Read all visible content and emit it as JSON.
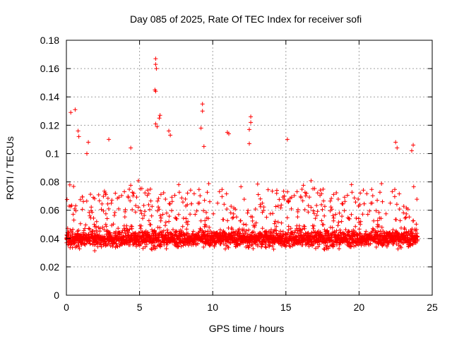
{
  "chart_data": {
    "type": "scatter",
    "title": "Day 085 of 2025, Rate Of TEC Index for receiver sofi",
    "xlabel": "GPS time / hours",
    "ylabel": "ROTI / TECUs",
    "xlim": [
      0,
      25
    ],
    "ylim": [
      0,
      0.18
    ],
    "grid": true,
    "marker": "+",
    "color": "#ff0000",
    "x_ticks": [
      0,
      5,
      10,
      15,
      20,
      25
    ],
    "x_tick_labels": [
      "0",
      "5",
      "10",
      "15",
      "20",
      "25"
    ],
    "y_ticks": [
      0,
      0.02,
      0.04,
      0.06,
      0.08,
      0.1,
      0.12,
      0.14,
      0.16,
      0.18
    ],
    "y_tick_labels": [
      "0",
      "0.02",
      "0.04",
      "0.06",
      "0.08",
      "0.1",
      "0.12",
      "0.14",
      "0.16",
      "0.18"
    ],
    "series": [
      {
        "name": "ROTI",
        "data_range_hours": [
          0,
          24
        ],
        "typical_range": [
          0.02,
          0.08
        ],
        "dense_band_center": 0.04,
        "outliers": [
          {
            "x": 0.3,
            "y": 0.129
          },
          {
            "x": 0.6,
            "y": 0.131
          },
          {
            "x": 0.8,
            "y": 0.116
          },
          {
            "x": 0.85,
            "y": 0.112
          },
          {
            "x": 1.4,
            "y": 0.1
          },
          {
            "x": 1.5,
            "y": 0.108
          },
          {
            "x": 2.9,
            "y": 0.11
          },
          {
            "x": 4.4,
            "y": 0.104
          },
          {
            "x": 6.1,
            "y": 0.167
          },
          {
            "x": 6.1,
            "y": 0.163
          },
          {
            "x": 6.15,
            "y": 0.16
          },
          {
            "x": 6.05,
            "y": 0.145
          },
          {
            "x": 6.1,
            "y": 0.144
          },
          {
            "x": 6.1,
            "y": 0.121
          },
          {
            "x": 6.2,
            "y": 0.119
          },
          {
            "x": 6.4,
            "y": 0.127
          },
          {
            "x": 6.35,
            "y": 0.125
          },
          {
            "x": 7.0,
            "y": 0.116
          },
          {
            "x": 7.1,
            "y": 0.113
          },
          {
            "x": 9.3,
            "y": 0.135
          },
          {
            "x": 9.3,
            "y": 0.13
          },
          {
            "x": 9.2,
            "y": 0.118
          },
          {
            "x": 9.4,
            "y": 0.105
          },
          {
            "x": 11.0,
            "y": 0.115
          },
          {
            "x": 11.1,
            "y": 0.114
          },
          {
            "x": 12.6,
            "y": 0.126
          },
          {
            "x": 12.6,
            "y": 0.122
          },
          {
            "x": 12.5,
            "y": 0.117
          },
          {
            "x": 12.5,
            "y": 0.107
          },
          {
            "x": 15.1,
            "y": 0.11
          },
          {
            "x": 22.5,
            "y": 0.108
          },
          {
            "x": 22.6,
            "y": 0.104
          },
          {
            "x": 23.7,
            "y": 0.106
          },
          {
            "x": 23.6,
            "y": 0.102
          }
        ]
      }
    ]
  }
}
